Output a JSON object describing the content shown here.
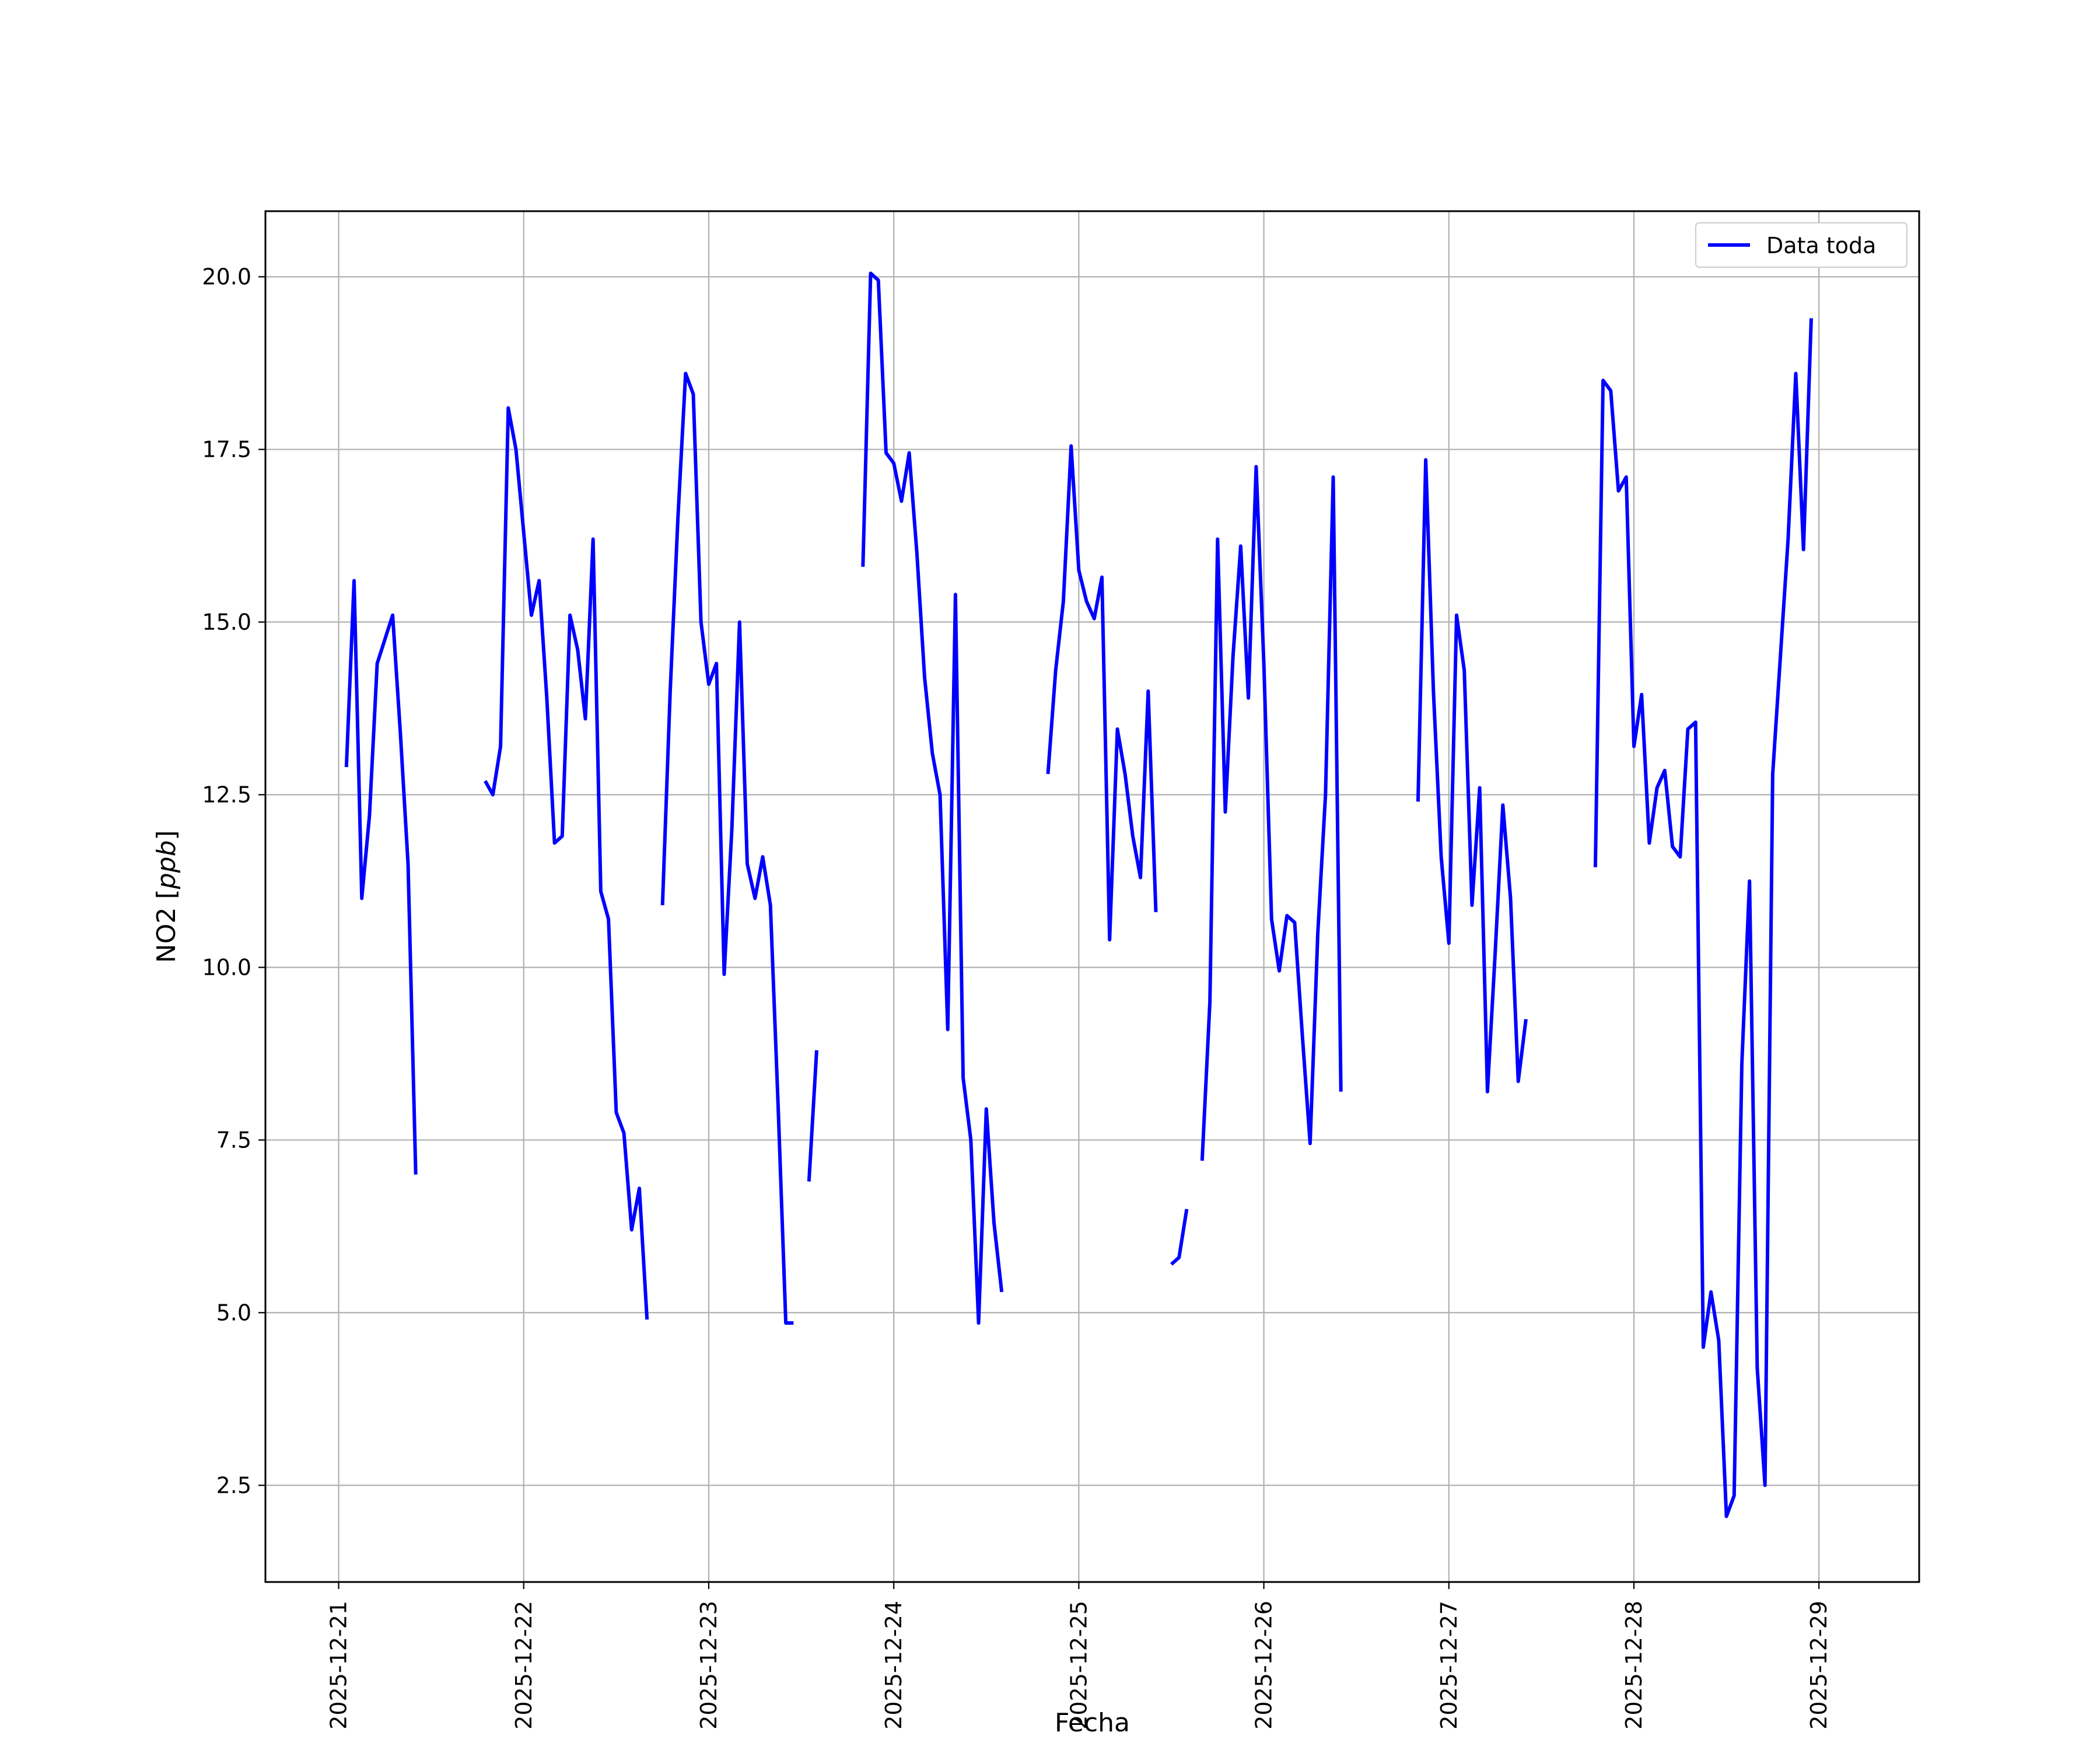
{
  "chart_data": {
    "type": "line",
    "xlabel": "Fecha",
    "ylabel_main": "NO2 [",
    "ylabel_unit": "ppb",
    "ylabel_close": "]",
    "ylim": [
      1.1,
      20.95
    ],
    "xlim": [
      "2025-12-20T14:30",
      "2025-12-29T13:00"
    ],
    "grid": true,
    "legend_position": "top-right",
    "color": "#0000ff",
    "yticks": [
      2.5,
      5.0,
      7.5,
      10.0,
      12.5,
      15.0,
      17.5,
      20.0
    ],
    "ytick_labels": [
      "2.5",
      "5.0",
      "7.5",
      "10.0",
      "12.5",
      "15.0",
      "17.5",
      "20.0"
    ],
    "xticks": [
      "2025-12-21",
      "2025-12-22",
      "2025-12-23",
      "2025-12-24",
      "2025-12-25",
      "2025-12-26",
      "2025-12-27",
      "2025-12-28",
      "2025-12-29"
    ],
    "series": [
      {
        "name": "Data toda",
        "segments": [
          [
            [
              "2025-12-21T01:00",
              12.9
            ],
            [
              "2025-12-21T02:00",
              15.6
            ],
            [
              "2025-12-21T03:00",
              11.0
            ],
            [
              "2025-12-21T04:00",
              12.2
            ],
            [
              "2025-12-21T05:00",
              14.4
            ],
            [
              "2025-12-21T07:00",
              15.1
            ],
            [
              "2025-12-21T08:00",
              13.4
            ],
            [
              "2025-12-21T09:00",
              11.5
            ],
            [
              "2025-12-21T10:00",
              7.0
            ]
          ],
          [
            [
              "2025-12-21T19:00",
              12.7
            ],
            [
              "2025-12-21T20:00",
              12.5
            ],
            [
              "2025-12-21T21:00",
              13.2
            ],
            [
              "2025-12-21T22:00",
              18.1
            ],
            [
              "2025-12-21T23:00",
              17.5
            ],
            [
              "2025-12-22T01:00",
              15.1
            ],
            [
              "2025-12-22T02:00",
              15.6
            ],
            [
              "2025-12-22T03:00",
              13.9
            ],
            [
              "2025-12-22T04:00",
              11.8
            ],
            [
              "2025-12-22T05:00",
              11.9
            ],
            [
              "2025-12-22T06:00",
              15.1
            ],
            [
              "2025-12-22T07:00",
              14.6
            ],
            [
              "2025-12-22T08:00",
              13.6
            ],
            [
              "2025-12-22T09:00",
              16.2
            ],
            [
              "2025-12-22T10:00",
              11.1
            ],
            [
              "2025-12-22T11:00",
              10.7
            ],
            [
              "2025-12-22T12:00",
              7.9
            ],
            [
              "2025-12-22T13:00",
              7.6
            ],
            [
              "2025-12-22T14:00",
              6.2
            ],
            [
              "2025-12-22T15:00",
              6.8
            ],
            [
              "2025-12-22T16:00",
              4.9
            ]
          ],
          [
            [
              "2025-12-22T18:00",
              10.9
            ],
            [
              "2025-12-22T19:00",
              14.0
            ],
            [
              "2025-12-22T20:00",
              16.5
            ],
            [
              "2025-12-22T21:00",
              18.6
            ],
            [
              "2025-12-22T22:00",
              18.3
            ],
            [
              "2025-12-22T23:00",
              15.0
            ],
            [
              "2025-12-23T00:00",
              14.1
            ],
            [
              "2025-12-23T01:00",
              14.4
            ],
            [
              "2025-12-23T02:00",
              9.9
            ],
            [
              "2025-12-23T03:00",
              12.0
            ],
            [
              "2025-12-23T04:00",
              15.0
            ],
            [
              "2025-12-23T05:00",
              11.5
            ],
            [
              "2025-12-23T06:00",
              11.0
            ],
            [
              "2025-12-23T07:00",
              11.6
            ],
            [
              "2025-12-23T08:00",
              10.9
            ],
            [
              "2025-12-23T09:00",
              8.0
            ],
            [
              "2025-12-23T10:00",
              4.85
            ],
            [
              "2025-12-23T11:00",
              4.85
            ]
          ],
          [
            [
              "2025-12-23T13:00",
              6.9
            ],
            [
              "2025-12-23T14:00",
              8.8
            ]
          ],
          [
            [
              "2025-12-23T20:00",
              15.8
            ],
            [
              "2025-12-23T21:00",
              20.05
            ],
            [
              "2025-12-23T22:00",
              19.95
            ],
            [
              "2025-12-23T23:00",
              17.45
            ],
            [
              "2025-12-24T00:00",
              17.3
            ],
            [
              "2025-12-24T01:00",
              16.75
            ],
            [
              "2025-12-24T02:00",
              17.45
            ],
            [
              "2025-12-24T03:00",
              16.0
            ],
            [
              "2025-12-24T04:00",
              14.2
            ],
            [
              "2025-12-24T05:00",
              13.1
            ],
            [
              "2025-12-24T06:00",
              12.5
            ],
            [
              "2025-12-24T07:00",
              9.1
            ],
            [
              "2025-12-24T08:00",
              15.4
            ],
            [
              "2025-12-24T09:00",
              8.4
            ],
            [
              "2025-12-24T10:00",
              7.5
            ],
            [
              "2025-12-24T11:00",
              4.85
            ],
            [
              "2025-12-24T12:00",
              7.95
            ],
            [
              "2025-12-24T13:00",
              6.3
            ],
            [
              "2025-12-24T14:00",
              5.3
            ]
          ],
          [
            [
              "2025-12-24T20:00",
              12.8
            ],
            [
              "2025-12-24T21:00",
              14.3
            ],
            [
              "2025-12-24T22:00",
              15.3
            ],
            [
              "2025-12-24T23:00",
              17.55
            ],
            [
              "2025-12-25T00:00",
              15.75
            ],
            [
              "2025-12-25T01:00",
              15.3
            ],
            [
              "2025-12-25T02:00",
              15.05
            ],
            [
              "2025-12-25T03:00",
              15.65
            ],
            [
              "2025-12-25T04:00",
              10.4
            ],
            [
              "2025-12-25T05:00",
              13.45
            ],
            [
              "2025-12-25T06:00",
              12.8
            ],
            [
              "2025-12-25T07:00",
              11.9
            ],
            [
              "2025-12-25T08:00",
              11.3
            ],
            [
              "2025-12-25T09:00",
              14.0
            ],
            [
              "2025-12-25T10:00",
              10.8
            ]
          ],
          [
            [
              "2025-12-25T12:00",
              5.7
            ],
            [
              "2025-12-25T13:00",
              5.8
            ],
            [
              "2025-12-25T14:00",
              6.5
            ]
          ],
          [
            [
              "2025-12-25T16:00",
              7.2
            ],
            [
              "2025-12-25T17:00",
              9.5
            ],
            [
              "2025-12-25T18:00",
              16.2
            ],
            [
              "2025-12-25T19:00",
              12.25
            ],
            [
              "2025-12-25T20:00",
              14.5
            ],
            [
              "2025-12-25T21:00",
              16.1
            ],
            [
              "2025-12-25T22:00",
              13.9
            ],
            [
              "2025-12-25T23:00",
              17.25
            ],
            [
              "2025-12-26T00:00",
              14.4
            ],
            [
              "2025-12-26T01:00",
              10.7
            ],
            [
              "2025-12-26T02:00",
              9.95
            ],
            [
              "2025-12-26T03:00",
              10.75
            ],
            [
              "2025-12-26T04:00",
              10.65
            ],
            [
              "2025-12-26T05:00",
              9.0
            ],
            [
              "2025-12-26T06:00",
              7.45
            ],
            [
              "2025-12-26T07:00",
              10.5
            ],
            [
              "2025-12-26T08:00",
              12.5
            ],
            [
              "2025-12-26T09:00",
              17.1
            ],
            [
              "2025-12-26T10:00",
              8.2
            ]
          ],
          [
            [
              "2025-12-26T20:00",
              12.4
            ],
            [
              "2025-12-26T21:00",
              17.35
            ],
            [
              "2025-12-26T22:00",
              14.0
            ],
            [
              "2025-12-26T23:00",
              11.6
            ],
            [
              "2025-12-27T00:00",
              10.35
            ],
            [
              "2025-12-27T01:00",
              15.1
            ],
            [
              "2025-12-27T02:00",
              14.3
            ],
            [
              "2025-12-27T03:00",
              10.9
            ],
            [
              "2025-12-27T04:00",
              12.6
            ],
            [
              "2025-12-27T05:00",
              8.2
            ],
            [
              "2025-12-27T06:00",
              10.2
            ],
            [
              "2025-12-27T07:00",
              12.35
            ],
            [
              "2025-12-27T08:00",
              11.0
            ],
            [
              "2025-12-27T09:00",
              8.35
            ],
            [
              "2025-12-27T10:00",
              9.25
            ]
          ],
          [
            [
              "2025-12-27T19:00",
              11.45
            ],
            [
              "2025-12-27T20:00",
              18.5
            ],
            [
              "2025-12-27T21:00",
              18.35
            ],
            [
              "2025-12-27T22:00",
              16.9
            ],
            [
              "2025-12-27T23:00",
              17.1
            ],
            [
              "2025-12-28T00:00",
              13.2
            ],
            [
              "2025-12-28T01:00",
              13.95
            ],
            [
              "2025-12-28T02:00",
              11.8
            ],
            [
              "2025-12-28T03:00",
              12.6
            ],
            [
              "2025-12-28T04:00",
              12.85
            ],
            [
              "2025-12-28T05:00",
              11.75
            ],
            [
              "2025-12-28T06:00",
              11.6
            ],
            [
              "2025-12-28T07:00",
              13.45
            ],
            [
              "2025-12-28T08:00",
              13.55
            ],
            [
              "2025-12-28T09:00",
              4.5
            ],
            [
              "2025-12-28T10:00",
              5.3
            ],
            [
              "2025-12-28T11:00",
              4.6
            ],
            [
              "2025-12-28T12:00",
              2.05
            ],
            [
              "2025-12-28T13:00",
              2.35
            ],
            [
              "2025-12-28T14:00",
              8.6
            ],
            [
              "2025-12-28T15:00",
              11.25
            ],
            [
              "2025-12-28T16:00",
              4.2
            ],
            [
              "2025-12-28T17:00",
              2.5
            ],
            [
              "2025-12-28T18:00",
              12.8
            ],
            [
              "2025-12-28T19:00",
              14.5
            ],
            [
              "2025-12-28T20:00",
              16.2
            ],
            [
              "2025-12-28T21:00",
              18.6
            ],
            [
              "2025-12-28T22:00",
              16.05
            ],
            [
              "2025-12-28T23:00",
              19.4
            ]
          ]
        ]
      }
    ]
  }
}
